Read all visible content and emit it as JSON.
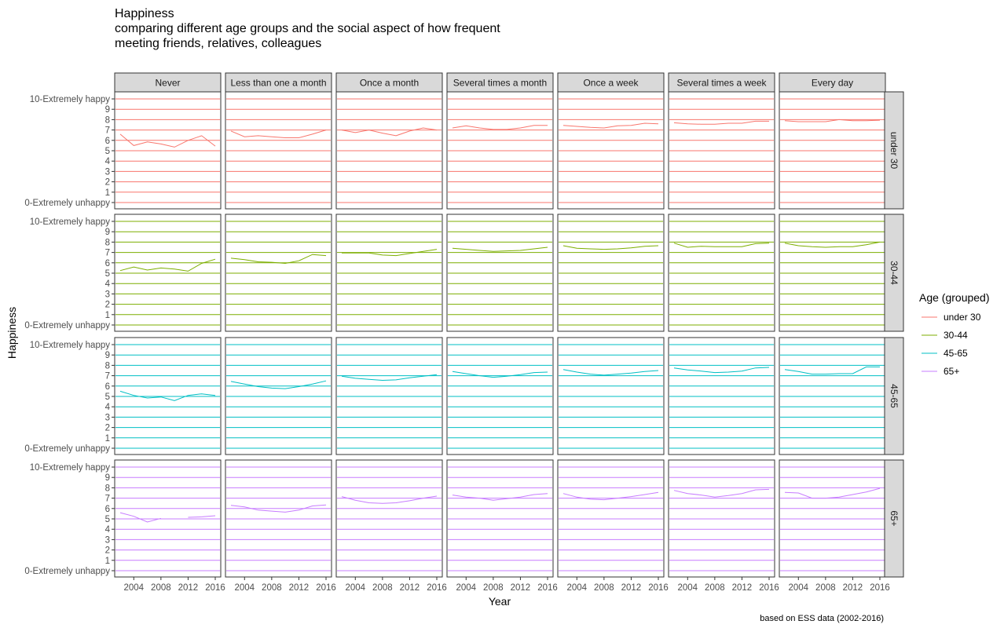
{
  "chart_data": {
    "type": "line",
    "title": [
      "Happiness",
      "comparing different age groups and the social aspect of how frequent",
      "meeting friends, relatives, colleagues"
    ],
    "xlabel": "Year",
    "ylabel": "Happiness",
    "caption": "based on ESS data (2002-2016)",
    "x_ticks": [
      "2004",
      "2008",
      "2012",
      "2016"
    ],
    "x_range": [
      2002,
      2016
    ],
    "y_range": [
      0,
      10
    ],
    "y_ticks": [
      "0-Extremely unhappy",
      "1",
      "2",
      "3",
      "4",
      "5",
      "6",
      "7",
      "8",
      "9",
      "10-Extremely happy"
    ],
    "x": [
      2002,
      2004,
      2006,
      2008,
      2010,
      2012,
      2014,
      2016
    ],
    "columns": [
      "Never",
      "Less than one a month",
      "Once a month",
      "Several times a month",
      "Once a week",
      "Several times a week",
      "Every day"
    ],
    "legend": {
      "title": "Age (grouped)",
      "position": "right",
      "entries": [
        {
          "name": "under 30",
          "color": "#F8766D"
        },
        {
          "name": "30-44",
          "color": "#7CAE00"
        },
        {
          "name": "45-65",
          "color": "#00BFC4"
        },
        {
          "name": "65+",
          "color": "#C77CFF"
        }
      ]
    },
    "rows": [
      {
        "label": "under 30",
        "color": "#F8766D",
        "series": [
          [
            6.6,
            5.5,
            5.85,
            5.65,
            5.35,
            6.0,
            6.45,
            5.45
          ],
          [
            6.9,
            6.35,
            6.45,
            6.35,
            6.25,
            6.25,
            6.6,
            7.0
          ],
          [
            7.0,
            6.75,
            7.0,
            6.7,
            6.45,
            6.9,
            7.2,
            7.0
          ],
          [
            7.2,
            7.4,
            7.2,
            7.05,
            7.05,
            7.2,
            7.45,
            7.45
          ],
          [
            7.45,
            7.35,
            7.25,
            7.2,
            7.4,
            7.45,
            7.65,
            7.6
          ],
          [
            7.7,
            7.6,
            7.55,
            7.55,
            7.65,
            7.65,
            7.85,
            7.85
          ],
          [
            7.9,
            7.8,
            7.8,
            7.8,
            8.0,
            7.9,
            7.9,
            7.95
          ]
        ]
      },
      {
        "label": "30-44",
        "color": "#7CAE00",
        "series": [
          [
            5.25,
            5.6,
            5.3,
            5.5,
            5.4,
            5.2,
            5.95,
            6.35
          ],
          [
            6.45,
            6.3,
            6.1,
            6.05,
            5.95,
            6.2,
            6.8,
            6.7
          ],
          [
            6.95,
            6.95,
            6.95,
            6.75,
            6.7,
            6.9,
            7.1,
            7.3
          ],
          [
            7.4,
            7.3,
            7.2,
            7.1,
            7.15,
            7.2,
            7.35,
            7.5
          ],
          [
            7.65,
            7.4,
            7.35,
            7.3,
            7.35,
            7.45,
            7.6,
            7.65
          ],
          [
            7.9,
            7.5,
            7.6,
            7.55,
            7.55,
            7.55,
            7.85,
            7.9
          ],
          [
            7.9,
            7.65,
            7.55,
            7.5,
            7.55,
            7.55,
            7.75,
            8.0
          ]
        ]
      },
      {
        "label": "45-65",
        "color": "#00BFC4",
        "series": [
          [
            5.5,
            5.1,
            4.85,
            4.95,
            4.6,
            5.1,
            5.25,
            5.1
          ],
          [
            6.45,
            6.2,
            5.95,
            5.8,
            5.75,
            5.95,
            6.2,
            6.5
          ],
          [
            6.95,
            6.75,
            6.65,
            6.55,
            6.6,
            6.8,
            6.95,
            7.1
          ],
          [
            7.4,
            7.2,
            7.0,
            6.85,
            6.95,
            7.1,
            7.3,
            7.35
          ],
          [
            7.6,
            7.35,
            7.15,
            7.05,
            7.15,
            7.25,
            7.4,
            7.5
          ],
          [
            7.75,
            7.55,
            7.45,
            7.3,
            7.35,
            7.45,
            7.75,
            7.8
          ],
          [
            7.6,
            7.4,
            7.15,
            7.15,
            7.2,
            7.2,
            7.85,
            7.85
          ]
        ]
      },
      {
        "label": "65+",
        "color": "#C77CFF",
        "series": [
          [
            5.6,
            5.25,
            4.7,
            5.05,
            null,
            5.15,
            5.2,
            5.3
          ],
          [
            6.3,
            6.15,
            5.85,
            5.75,
            5.65,
            5.85,
            6.25,
            6.35
          ],
          [
            7.15,
            6.8,
            6.55,
            6.5,
            6.55,
            6.75,
            7.0,
            7.2
          ],
          [
            7.3,
            7.1,
            7.0,
            6.8,
            6.95,
            7.1,
            7.35,
            7.45
          ],
          [
            7.45,
            7.1,
            6.9,
            6.85,
            7.0,
            7.15,
            7.35,
            7.55
          ],
          [
            7.75,
            7.45,
            7.3,
            7.1,
            7.25,
            7.45,
            7.8,
            7.85
          ],
          [
            7.55,
            7.5,
            7.0,
            7.0,
            7.1,
            7.35,
            7.6,
            7.95
          ]
        ]
      }
    ]
  }
}
